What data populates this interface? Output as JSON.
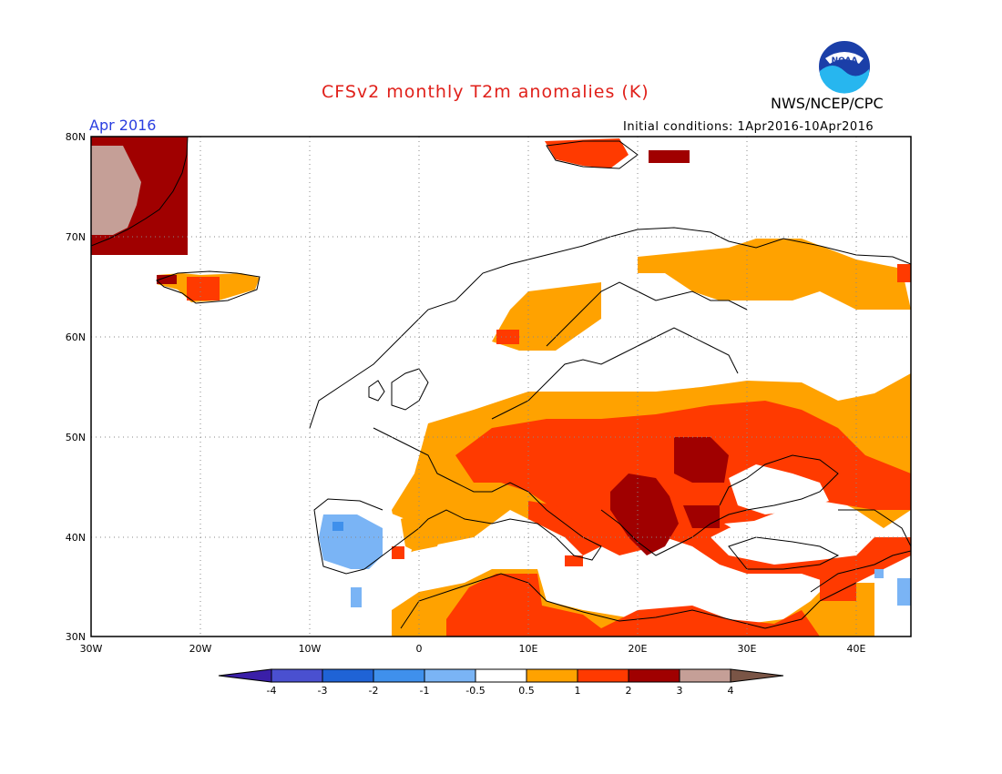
{
  "header": {
    "title": "CFSv2 monthly T2m anomalies (K)",
    "agency": "NWS/NCEP/CPC",
    "month": "Apr 2016",
    "initial_conditions": "Initial conditions: 1Apr2016-10Apr2016",
    "logo_text": "NOAA"
  },
  "map": {
    "lon_range": [
      -30,
      45
    ],
    "lat_range": [
      30,
      80
    ],
    "lat_labels": [
      "80N",
      "70N",
      "60N",
      "50N",
      "40N",
      "30N"
    ],
    "lon_labels": [
      "30W",
      "20W",
      "10W",
      "0",
      "10E",
      "20E",
      "30E",
      "40E"
    ]
  },
  "legend": {
    "labels": [
      "-4",
      "-3",
      "-2",
      "-1",
      "-0.5",
      "0.5",
      "1",
      "2",
      "3",
      "4"
    ],
    "colors": [
      "#3a1fa8",
      "#4a50d0",
      "#1f63d6",
      "#3f90ec",
      "#7ab4f5",
      "#ffffff",
      "#ffa200",
      "#ff3a00",
      "#a00000",
      "#c59f97",
      "#7a5546"
    ]
  },
  "colors": {
    "title": "#e0201a",
    "month": "#2a3ee0",
    "orange": "#ffa200",
    "red": "#ff3a00",
    "darkred": "#a00000",
    "tan": "#c59f97",
    "lightblue": "#7ab4f5",
    "blue": "#3f90ec"
  }
}
